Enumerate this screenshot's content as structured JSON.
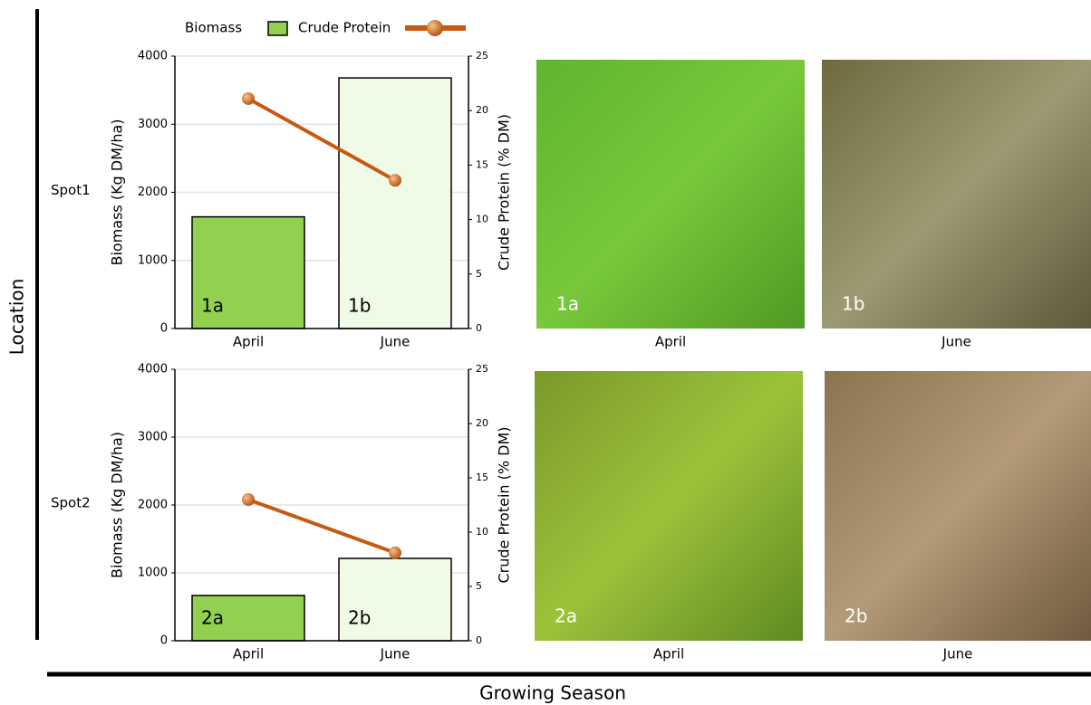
{
  "chart_data": [
    {
      "type": "bar",
      "row_label": "Spot1",
      "categories": [
        "April",
        "June"
      ],
      "bar_labels": [
        "1a",
        "1b"
      ],
      "series": [
        {
          "name": "Biomass",
          "colors": [
            "#92d050",
            "#effbe6"
          ],
          "values": [
            1640,
            3680
          ]
        },
        {
          "name": "Crude Protein",
          "type": "line",
          "axis": "y2",
          "color": "#c55a11",
          "values": [
            21.1,
            13.6
          ]
        }
      ],
      "ylabel": "Biomass (Kg DM/ha)",
      "y2label": "Crude Protein (% DM)",
      "ylim": [
        0,
        4000
      ],
      "yticks": [
        0,
        1000,
        2000,
        3000,
        4000
      ],
      "y2lim": [
        0,
        25
      ],
      "y2ticks": [
        0,
        5,
        10,
        15,
        20,
        25
      ],
      "grid": true
    },
    {
      "type": "bar",
      "row_label": "Spot2",
      "categories": [
        "April",
        "June"
      ],
      "bar_labels": [
        "2a",
        "2b"
      ],
      "series": [
        {
          "colors": [
            "#92d050",
            "#effbe6"
          ],
          "values": [
            667,
            1213
          ]
        },
        {
          "type": "line",
          "axis": "y2",
          "color": "#c55a11",
          "values": [
            13.0,
            8.1
          ]
        }
      ],
      "ylabel": "Biomass (Kg DM/ha)",
      "y2label": "Crude Protein (% DM)",
      "ylim": [
        0,
        4000
      ],
      "yticks": [
        0,
        1000,
        2000,
        3000,
        4000
      ],
      "y2lim": [
        0,
        25
      ],
      "y2ticks": [
        0,
        5,
        10,
        15,
        20,
        25
      ],
      "grid": true
    }
  ],
  "photos": [
    {
      "label": "1a",
      "caption": "April"
    },
    {
      "label": "1b",
      "caption": "June"
    },
    {
      "label": "2a",
      "caption": "April"
    },
    {
      "label": "2b",
      "caption": "June"
    }
  ],
  "x_axis_label": "Growing Season",
  "y_axis_label": "Location"
}
